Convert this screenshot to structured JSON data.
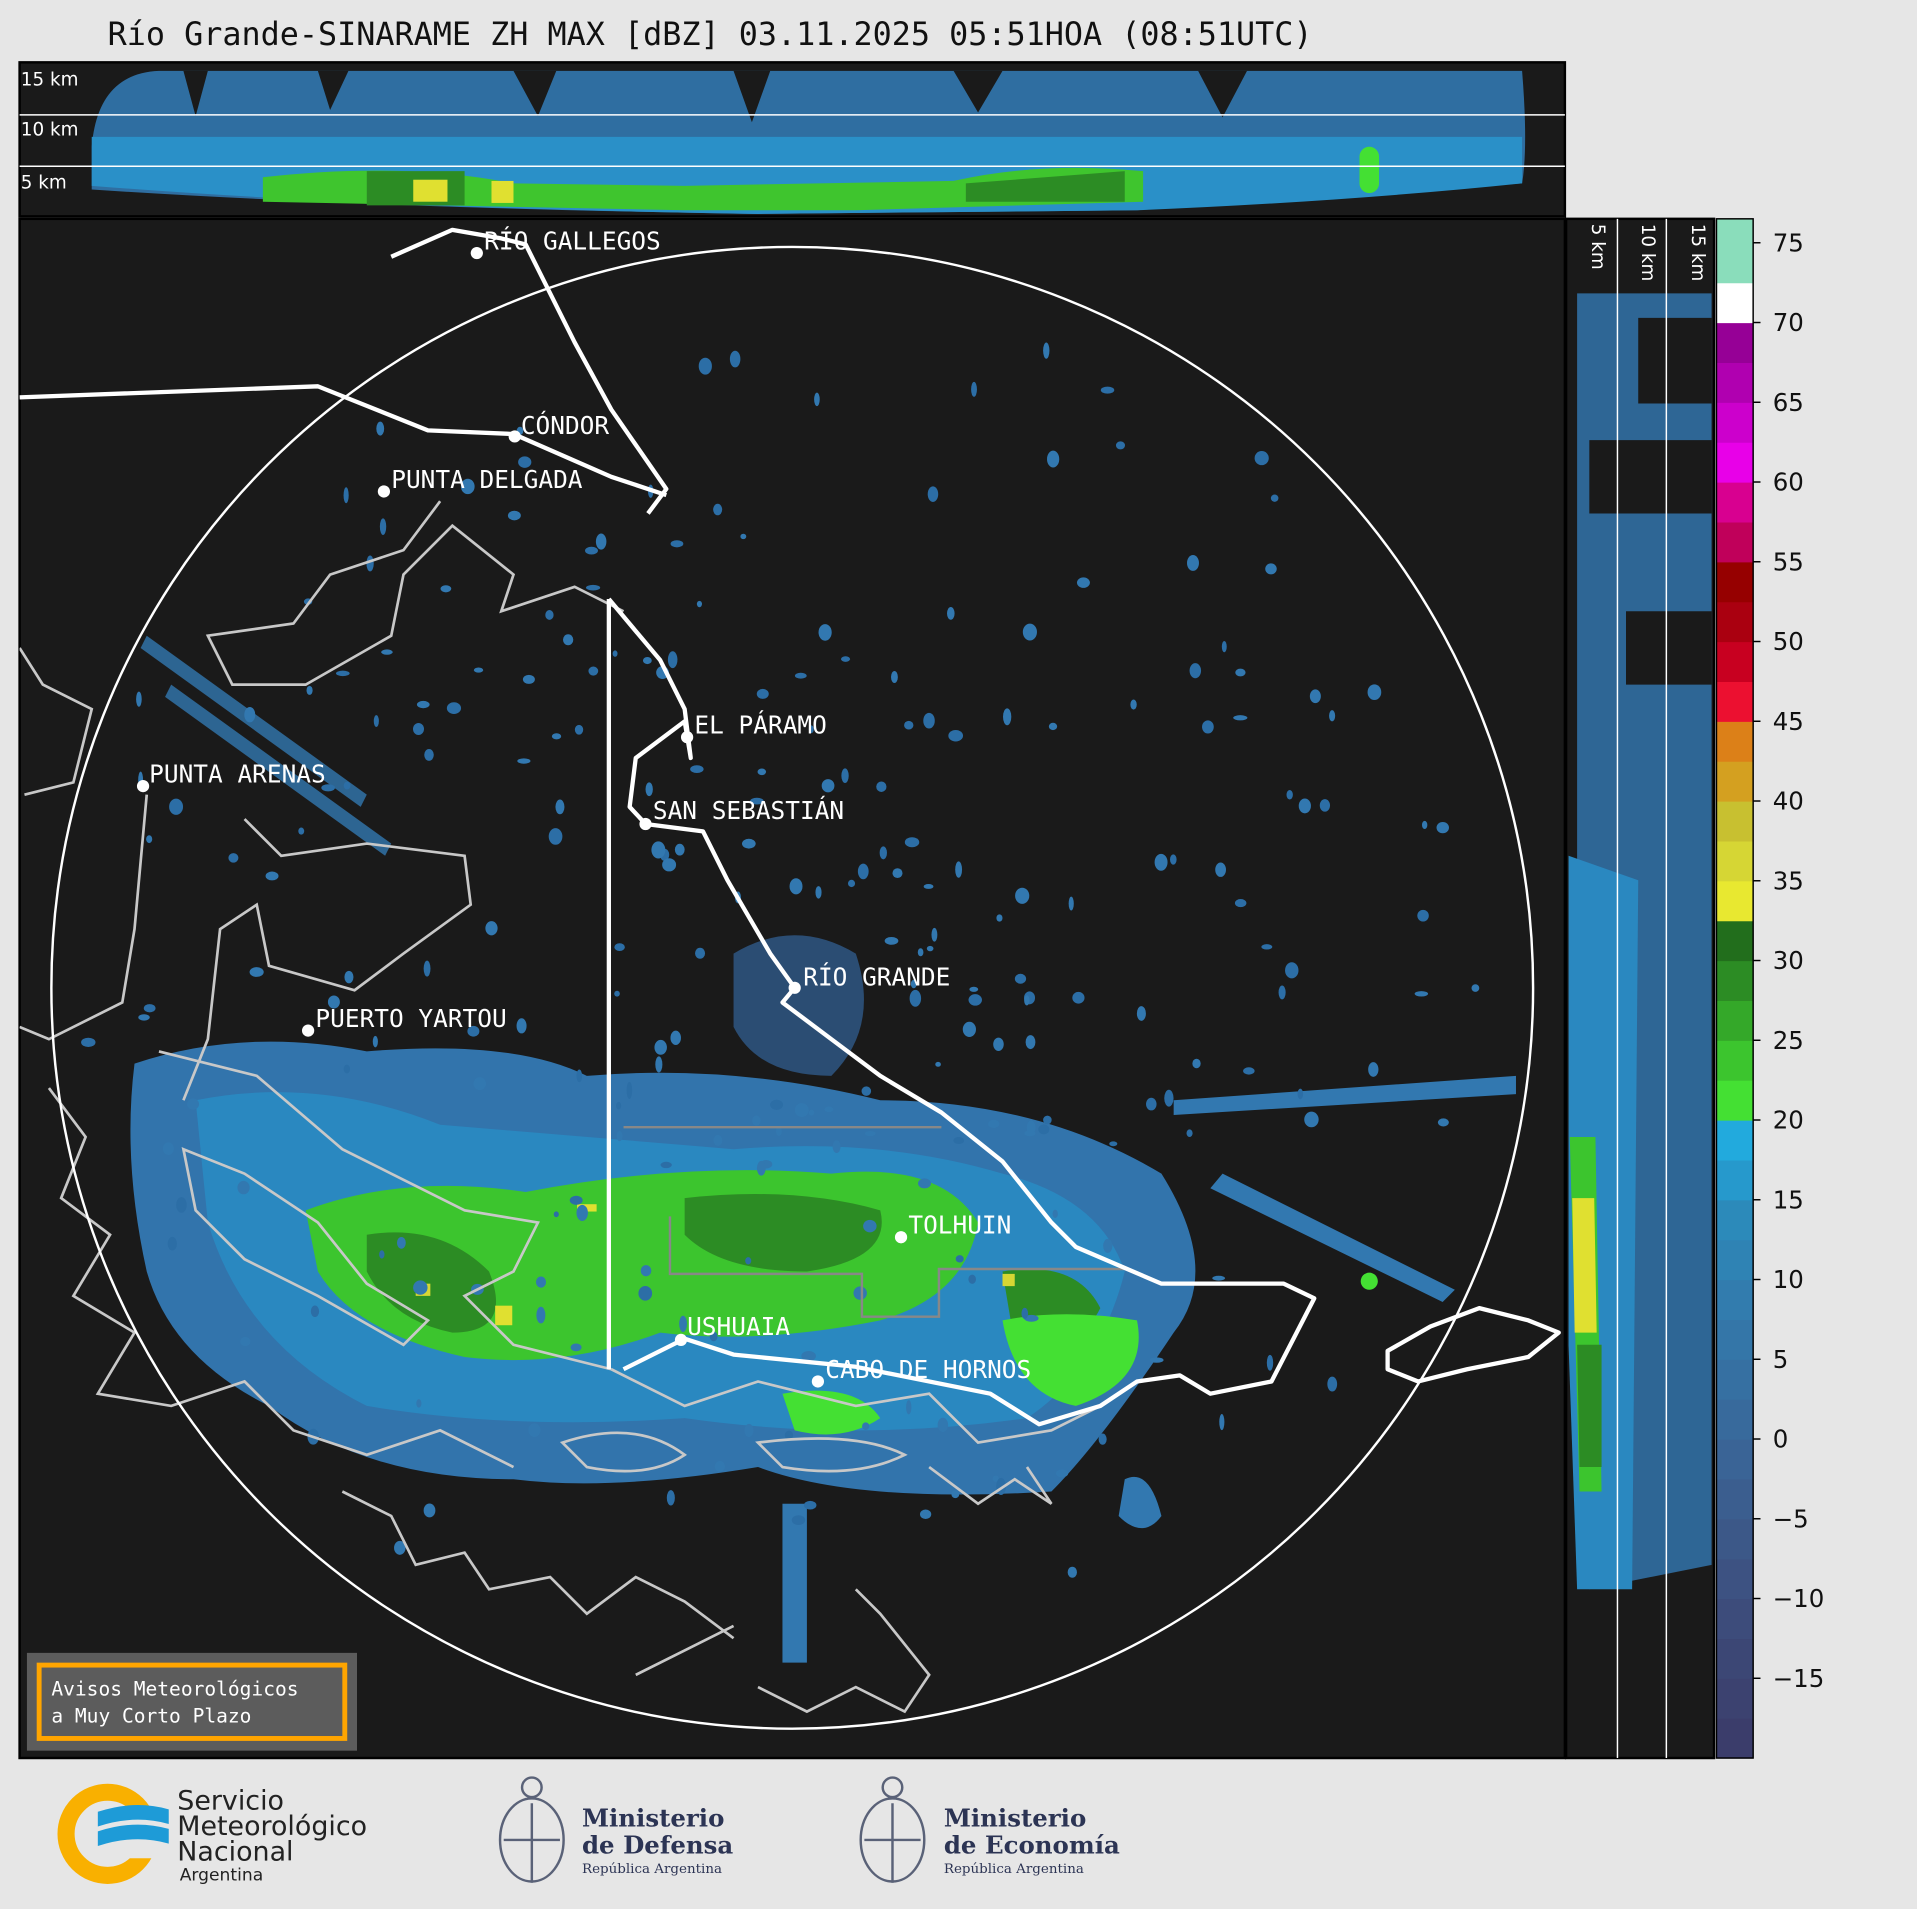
{
  "title": "Río Grande-SINARAME ZH MAX [dBZ] 03.11.2025 05:51HOA (08:51UTC)",
  "top_panel": {
    "labels": [
      "15 km",
      "10 km",
      "5 km"
    ]
  },
  "side_panel": {
    "labels": [
      "5 km",
      "10 km",
      "15 km"
    ]
  },
  "cities": [
    {
      "name": "RÍO GALLEGOS"
    },
    {
      "name": "CÓNDOR"
    },
    {
      "name": "PUNTA DELGADA"
    },
    {
      "name": "EL PÁRAMO"
    },
    {
      "name": "PUNTA ARENAS"
    },
    {
      "name": "SAN SEBASTIÁN"
    },
    {
      "name": "RÍO GRANDE"
    },
    {
      "name": "PUERTO YARTOU"
    },
    {
      "name": "TOLHUIN"
    },
    {
      "name": "USHUAIA"
    },
    {
      "name": "CABO DE HORNOS"
    }
  ],
  "warning_box": {
    "line1": "Avisos Meteorológicos",
    "line2": "a Muy Corto Plazo",
    "border_color": "#ffa500"
  },
  "colorbar": {
    "unit": "dBZ",
    "range": [
      -20,
      76.5
    ],
    "ticks": [
      "75",
      "70",
      "65",
      "60",
      "55",
      "50",
      "45",
      "40",
      "35",
      "30",
      "25",
      "20",
      "15",
      "10",
      "5",
      "0",
      "−5",
      "−10",
      "−15"
    ],
    "tick_values": [
      75,
      70,
      65,
      60,
      55,
      50,
      45,
      40,
      35,
      30,
      25,
      20,
      15,
      10,
      5,
      0,
      -5,
      -10,
      -15
    ],
    "bins": [
      {
        "from": -20,
        "to": -17.5,
        "color": "#3b3d6b"
      },
      {
        "from": -17.5,
        "to": -15,
        "color": "#3c4270"
      },
      {
        "from": -15,
        "to": -12.5,
        "color": "#3c4775"
      },
      {
        "from": -12.5,
        "to": -10,
        "color": "#3d4c7b"
      },
      {
        "from": -10,
        "to": -7.5,
        "color": "#3d5282"
      },
      {
        "from": -7.5,
        "to": -5,
        "color": "#3c5888"
      },
      {
        "from": -5,
        "to": -2.5,
        "color": "#3b5e8f"
      },
      {
        "from": -2.5,
        "to": 0,
        "color": "#3a6496"
      },
      {
        "from": 0,
        "to": 2.5,
        "color": "#386a9c"
      },
      {
        "from": 2.5,
        "to": 5,
        "color": "#3670a2"
      },
      {
        "from": 5,
        "to": 7.5,
        "color": "#3476a8"
      },
      {
        "from": 7.5,
        "to": 10,
        "color": "#327cae"
      },
      {
        "from": 10,
        "to": 12.5,
        "color": "#2f83b4"
      },
      {
        "from": 12.5,
        "to": 15,
        "color": "#2c8aba"
      },
      {
        "from": 15,
        "to": 17.5,
        "color": "#2699cc"
      },
      {
        "from": 17.5,
        "to": 20,
        "color": "#22aadd"
      },
      {
        "from": 20,
        "to": 22.5,
        "color": "#44e033"
      },
      {
        "from": 22.5,
        "to": 25,
        "color": "#3cc52e"
      },
      {
        "from": 25,
        "to": 27.5,
        "color": "#34a829"
      },
      {
        "from": 27.5,
        "to": 30,
        "color": "#2c8c24"
      },
      {
        "from": 30,
        "to": 32.5,
        "color": "#226e1c"
      },
      {
        "from": 32.5,
        "to": 35,
        "color": "#e8e830"
      },
      {
        "from": 35,
        "to": 37.5,
        "color": "#d6d634"
      },
      {
        "from": 37.5,
        "to": 40,
        "color": "#c8c030"
      },
      {
        "from": 40,
        "to": 42.5,
        "color": "#d4a020"
      },
      {
        "from": 42.5,
        "to": 45,
        "color": "#dc8018"
      },
      {
        "from": 45,
        "to": 47.5,
        "color": "#ec1030"
      },
      {
        "from": 47.5,
        "to": 50,
        "color": "#c80020"
      },
      {
        "from": 50,
        "to": 52.5,
        "color": "#aa0010"
      },
      {
        "from": 52.5,
        "to": 55,
        "color": "#960000"
      },
      {
        "from": 55,
        "to": 57.5,
        "color": "#c0005a"
      },
      {
        "from": 57.5,
        "to": 60,
        "color": "#d80090"
      },
      {
        "from": 60,
        "to": 62.5,
        "color": "#e800e8"
      },
      {
        "from": 62.5,
        "to": 65,
        "color": "#cc00cc"
      },
      {
        "from": 65,
        "to": 67.5,
        "color": "#b000b0"
      },
      {
        "from": 67.5,
        "to": 70,
        "color": "#960096"
      },
      {
        "from": 70,
        "to": 72.5,
        "color": "#ffffff"
      },
      {
        "from": 72.5,
        "to": 76.5,
        "color": "#8addbb"
      }
    ]
  },
  "logos": {
    "smn": {
      "line1": "Servicio",
      "line2": "Meteorológico",
      "line3": "Nacional",
      "line4": "Argentina"
    },
    "defensa": {
      "line1": "Ministerio",
      "line2": "de Defensa",
      "line3": "República Argentina"
    },
    "economia": {
      "line1": "Ministerio",
      "line2": "de Economía",
      "line3": "República Argentina"
    }
  }
}
